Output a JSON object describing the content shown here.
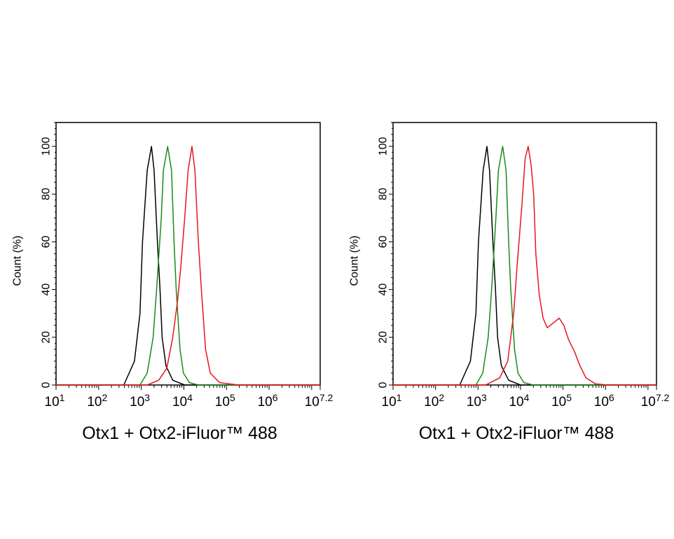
{
  "chart_data": [
    {
      "type": "line",
      "xlabel": "Otx1 + Otx2-iFluor™ 488",
      "ylabel": "Count  (%)",
      "xscale": "log",
      "xlim_log10": [
        1,
        7.2
      ],
      "ylim": [
        0,
        110
      ],
      "xtick_labels": [
        {
          "base": "10",
          "exp": "1"
        },
        {
          "base": "10",
          "exp": "2"
        },
        {
          "base": "10",
          "exp": "3"
        },
        {
          "base": "10",
          "exp": "4"
        },
        {
          "base": "10",
          "exp": "5"
        },
        {
          "base": "10",
          "exp": "6"
        },
        {
          "base": "10",
          "exp": "7.2"
        }
      ],
      "yticks": [
        0,
        20,
        40,
        60,
        80,
        100
      ],
      "grid": false,
      "series": [
        {
          "color": "#000000",
          "points_log10x_y": [
            [
              2.59,
              0
            ],
            [
              2.84,
              10
            ],
            [
              2.97,
              30
            ],
            [
              3.03,
              60
            ],
            [
              3.14,
              90
            ],
            [
              3.24,
              100
            ],
            [
              3.3,
              90
            ],
            [
              3.38,
              60
            ],
            [
              3.44,
              40
            ],
            [
              3.49,
              20
            ],
            [
              3.58,
              8
            ],
            [
              3.74,
              2
            ],
            [
              4.02,
              0
            ]
          ]
        },
        {
          "color": "#1a8a1a",
          "points_log10x_y": [
            [
              2.97,
              0
            ],
            [
              3.14,
              5
            ],
            [
              3.28,
              20
            ],
            [
              3.36,
              40
            ],
            [
              3.47,
              70
            ],
            [
              3.52,
              90
            ],
            [
              3.62,
              100
            ],
            [
              3.71,
              90
            ],
            [
              3.77,
              60
            ],
            [
              3.82,
              40
            ],
            [
              3.91,
              15
            ],
            [
              3.99,
              5
            ],
            [
              4.13,
              1
            ],
            [
              4.34,
              0
            ]
          ]
        },
        {
          "color": "#e8141c",
          "points_log10x_y": [
            [
              3.14,
              0
            ],
            [
              3.41,
              2
            ],
            [
              3.6,
              7
            ],
            [
              3.74,
              20
            ],
            [
              3.85,
              35
            ],
            [
              3.93,
              50
            ],
            [
              4.02,
              70
            ],
            [
              4.1,
              90
            ],
            [
              4.19,
              100
            ],
            [
              4.26,
              90
            ],
            [
              4.34,
              60
            ],
            [
              4.41,
              40
            ],
            [
              4.51,
              15
            ],
            [
              4.62,
              5
            ],
            [
              4.84,
              1
            ],
            [
              5.28,
              0
            ]
          ]
        }
      ]
    },
    {
      "type": "line",
      "xlabel": "Otx1 + Otx2-iFluor™ 488",
      "ylabel": "Count  (%)",
      "xscale": "log",
      "xlim_log10": [
        1,
        7.2
      ],
      "ylim": [
        0,
        110
      ],
      "xtick_labels": [
        {
          "base": "10",
          "exp": "1"
        },
        {
          "base": "10",
          "exp": "2"
        },
        {
          "base": "10",
          "exp": "3"
        },
        {
          "base": "10",
          "exp": "4"
        },
        {
          "base": "10",
          "exp": "5"
        },
        {
          "base": "10",
          "exp": "6"
        },
        {
          "base": "10",
          "exp": "7.2"
        }
      ],
      "yticks": [
        0,
        20,
        40,
        60,
        80,
        100
      ],
      "grid": false,
      "series": [
        {
          "color": "#000000",
          "points_log10x_y": [
            [
              2.57,
              0
            ],
            [
              2.82,
              10
            ],
            [
              2.95,
              30
            ],
            [
              3.01,
              60
            ],
            [
              3.12,
              90
            ],
            [
              3.21,
              100
            ],
            [
              3.27,
              90
            ],
            [
              3.35,
              60
            ],
            [
              3.41,
              40
            ],
            [
              3.46,
              20
            ],
            [
              3.55,
              8
            ],
            [
              3.72,
              2
            ],
            [
              4.0,
              0
            ]
          ]
        },
        {
          "color": "#1a8a1a",
          "points_log10x_y": [
            [
              2.95,
              0
            ],
            [
              3.11,
              5
            ],
            [
              3.24,
              20
            ],
            [
              3.32,
              40
            ],
            [
              3.42,
              70
            ],
            [
              3.48,
              90
            ],
            [
              3.58,
              100
            ],
            [
              3.66,
              90
            ],
            [
              3.72,
              60
            ],
            [
              3.77,
              40
            ],
            [
              3.86,
              15
            ],
            [
              3.94,
              5
            ],
            [
              4.08,
              1
            ],
            [
              4.3,
              0
            ]
          ]
        },
        {
          "color": "#e8141c",
          "points_log10x_y": [
            [
              3.18,
              0
            ],
            [
              3.51,
              3
            ],
            [
              3.7,
              10
            ],
            [
              3.84,
              30
            ],
            [
              3.92,
              50
            ],
            [
              4.03,
              75
            ],
            [
              4.11,
              95
            ],
            [
              4.18,
              100
            ],
            [
              4.25,
              92
            ],
            [
              4.31,
              80
            ],
            [
              4.36,
              55
            ],
            [
              4.44,
              38
            ],
            [
              4.53,
              28
            ],
            [
              4.63,
              24
            ],
            [
              4.77,
              26
            ],
            [
              4.91,
              28
            ],
            [
              5.02,
              25
            ],
            [
              5.13,
              19
            ],
            [
              5.27,
              14
            ],
            [
              5.4,
              8
            ],
            [
              5.54,
              3
            ],
            [
              5.76,
              0.5
            ],
            [
              6.03,
              0
            ]
          ]
        }
      ]
    }
  ]
}
